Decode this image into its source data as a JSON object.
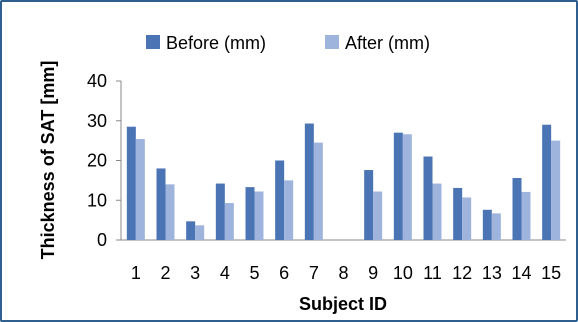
{
  "chart_data": {
    "type": "bar",
    "title": "",
    "xlabel": "Subject ID",
    "ylabel": "Thickness of SAT [mm]",
    "ylim": [
      0,
      40
    ],
    "yticks": [
      "0",
      "10",
      "20",
      "30",
      "40"
    ],
    "categories": [
      "1",
      "2",
      "3",
      "4",
      "5",
      "6",
      "7",
      "8",
      "9",
      "10",
      "11",
      "12",
      "13",
      "14",
      "15"
    ],
    "series": [
      {
        "name": "Before (mm)",
        "color": "#4a74b4",
        "values": [
          28.5,
          18,
          4.7,
          14.2,
          13.3,
          20,
          29.3,
          0,
          17.6,
          27,
          21,
          13.1,
          7.6,
          15.6,
          29
        ]
      },
      {
        "name": "After (mm)",
        "color": "#9fb4dc",
        "values": [
          25.4,
          14,
          3.7,
          9.3,
          12.2,
          15,
          24.5,
          0,
          12.2,
          26.6,
          14.2,
          10.7,
          6.7,
          12.1,
          25
        ]
      }
    ],
    "grid": false,
    "legend": "top-center"
  }
}
